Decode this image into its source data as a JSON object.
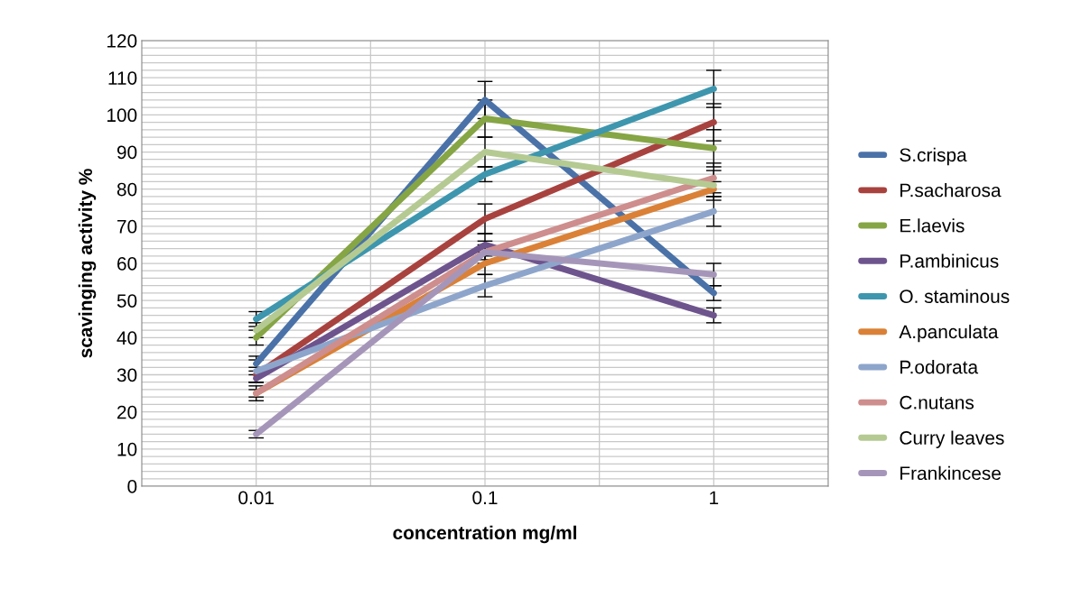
{
  "chart_data": {
    "type": "line",
    "xlabel": "concentration mg/ml",
    "ylabel": "scavinging activity %",
    "categories": [
      "0.01",
      "0.1",
      "1"
    ],
    "ylim": [
      0,
      120
    ],
    "yticks": [
      0,
      10,
      20,
      30,
      40,
      50,
      60,
      70,
      80,
      90,
      100,
      110,
      120
    ],
    "grid": true,
    "legend": "right",
    "marker": "none",
    "line_style": "solid",
    "series": [
      {
        "name": "S.crispa",
        "color": "#4a72a8",
        "values": [
          33,
          104,
          52
        ],
        "errors": [
          2,
          5,
          2
        ]
      },
      {
        "name": "P.sacharosa",
        "color": "#a8423f",
        "values": [
          30,
          72,
          98
        ],
        "errors": [
          2,
          4,
          5
        ]
      },
      {
        "name": "E.laevis",
        "color": "#86a544",
        "values": [
          40,
          99,
          91
        ],
        "errors": [
          2,
          5,
          5
        ]
      },
      {
        "name": "P.ambinicus",
        "color": "#6e548d",
        "values": [
          29,
          65,
          46
        ],
        "errors": [
          1,
          3,
          2
        ]
      },
      {
        "name": "O. staminous",
        "color": "#3d96ae",
        "values": [
          45,
          84,
          107
        ],
        "errors": [
          2,
          2,
          5
        ]
      },
      {
        "name": "A.panculata",
        "color": "#da8137",
        "values": [
          25,
          60,
          80
        ],
        "errors": [
          1,
          3,
          2
        ]
      },
      {
        "name": "P.odorata",
        "color": "#8ea5cb",
        "values": [
          31,
          54,
          74
        ],
        "errors": [
          3,
          3,
          4
        ]
      },
      {
        "name": "C.nutans",
        "color": "#ce8e8d",
        "values": [
          25,
          63,
          83
        ],
        "errors": [
          2,
          3,
          4
        ]
      },
      {
        "name": "Curry leaves",
        "color": "#b5ca92",
        "values": [
          42,
          90,
          81
        ],
        "errors": [
          2,
          4,
          4
        ]
      },
      {
        "name": "Frankincese",
        "color": "#a596b9",
        "values": [
          14,
          63,
          57
        ],
        "errors": [
          1,
          2,
          3
        ]
      }
    ]
  }
}
